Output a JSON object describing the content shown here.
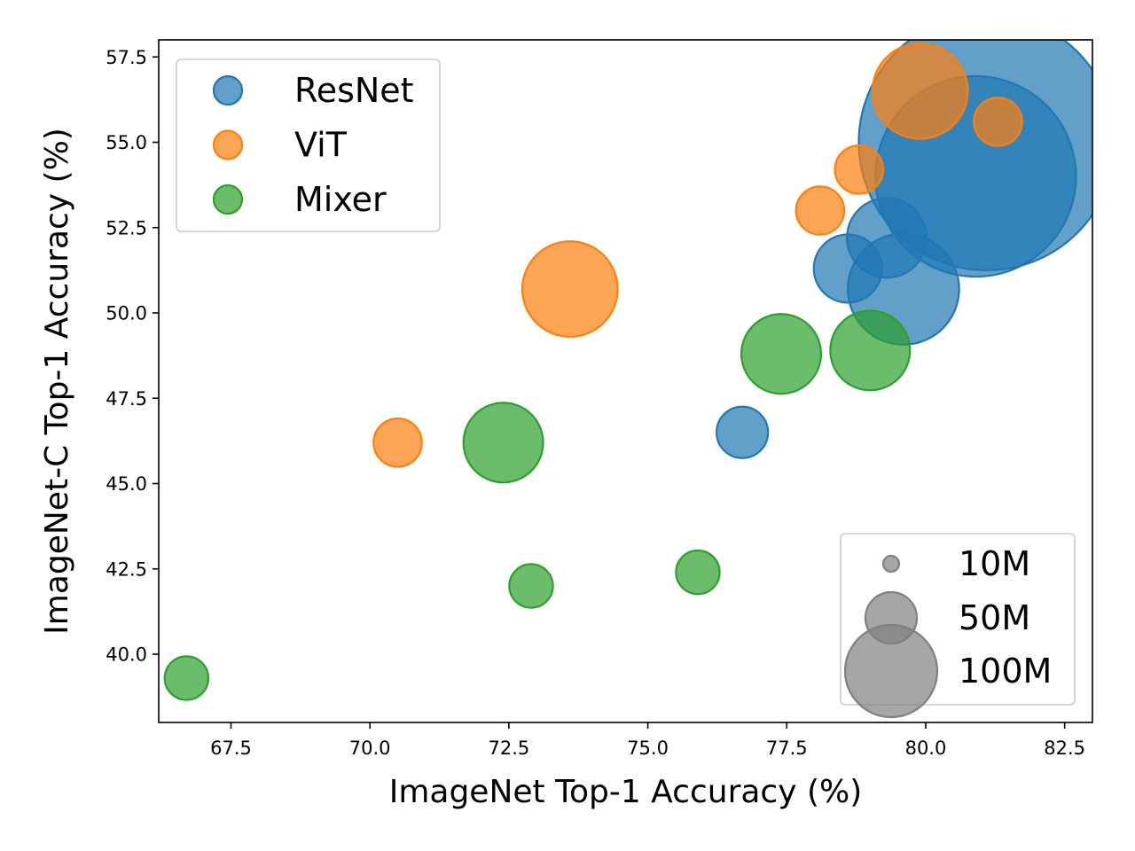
{
  "chart_data": {
    "type": "scatter",
    "xlabel": "ImageNet Top-1 Accuracy (%)",
    "ylabel": "ImageNet-C Top-1 Accuracy (%)",
    "xlim": [
      66.2,
      83.0
    ],
    "ylim": [
      38.0,
      58.0
    ],
    "xticks": [
      67.5,
      70.0,
      72.5,
      75.0,
      77.5,
      80.0,
      82.5
    ],
    "xtick_labels": [
      "67.5",
      "70.0",
      "72.5",
      "75.0",
      "77.5",
      "80.0",
      "82.5"
    ],
    "yticks": [
      40.0,
      42.5,
      45.0,
      47.5,
      50.0,
      52.5,
      55.0,
      57.5
    ],
    "ytick_labels": [
      "40.0",
      "42.5",
      "45.0",
      "47.5",
      "50.0",
      "52.5",
      "55.0",
      "57.5"
    ],
    "grid": false,
    "legend_placement": "upper-left",
    "size_legend_placement": "lower-right",
    "series": [
      {
        "name": "ResNet",
        "color": "#1f77b4",
        "points": [
          {
            "x": 76.7,
            "y": 46.5,
            "size_m": 25
          },
          {
            "x": 78.6,
            "y": 51.3,
            "size_m": 44
          },
          {
            "x": 79.3,
            "y": 52.2,
            "size_m": 60
          },
          {
            "x": 79.6,
            "y": 50.7,
            "size_m": 117
          },
          {
            "x": 80.9,
            "y": 54.0,
            "size_m": 380
          },
          {
            "x": 81.1,
            "y": 55.0,
            "size_m": 620
          }
        ]
      },
      {
        "name": "ViT",
        "color": "#ff7f0e",
        "points": [
          {
            "x": 70.5,
            "y": 46.2,
            "size_m": 22
          },
          {
            "x": 73.6,
            "y": 50.7,
            "size_m": 86
          },
          {
            "x": 78.1,
            "y": 53.0,
            "size_m": 22
          },
          {
            "x": 78.8,
            "y": 54.2,
            "size_m": 22
          },
          {
            "x": 79.9,
            "y": 56.5,
            "size_m": 86
          },
          {
            "x": 81.3,
            "y": 55.6,
            "size_m": 22
          }
        ]
      },
      {
        "name": "Mixer",
        "color": "#2ca02c",
        "points": [
          {
            "x": 66.7,
            "y": 39.3,
            "size_m": 18
          },
          {
            "x": 72.4,
            "y": 46.2,
            "size_m": 60
          },
          {
            "x": 72.9,
            "y": 42.0,
            "size_m": 18
          },
          {
            "x": 75.9,
            "y": 42.4,
            "size_m": 18
          },
          {
            "x": 77.4,
            "y": 48.8,
            "size_m": 60
          },
          {
            "x": 79.0,
            "y": 48.9,
            "size_m": 60
          }
        ]
      }
    ],
    "size_legend": [
      {
        "label": "10M",
        "size_m": 10
      },
      {
        "label": "50M",
        "size_m": 50
      },
      {
        "label": "100M",
        "size_m": 100
      }
    ],
    "size_legend_color": "#808080"
  }
}
